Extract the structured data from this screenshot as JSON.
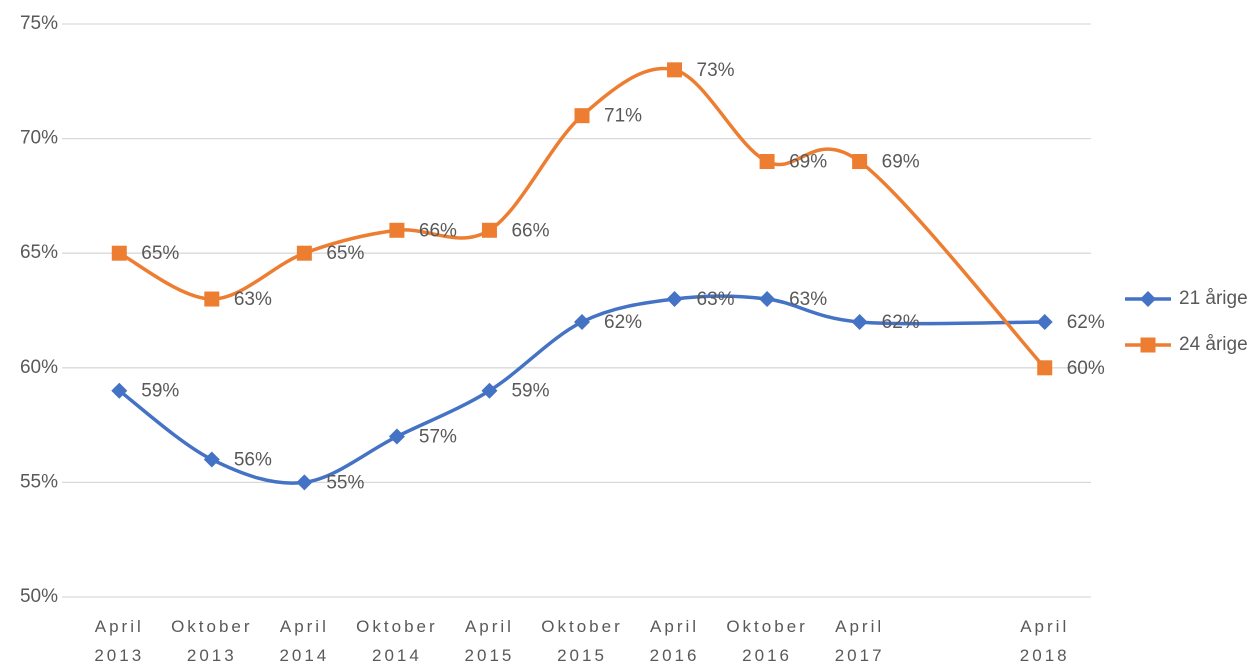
{
  "chart_data": {
    "type": "line",
    "categories": [
      "April 2013",
      "Oktober 2013",
      "April 2014",
      "Oktober 2014",
      "April 2015",
      "Oktober 2015",
      "April 2016",
      "Oktober 2016",
      "April 2017",
      null,
      "April 2018"
    ],
    "series": [
      {
        "name": "21 årige",
        "color": "#4472c4",
        "marker": "diamond",
        "values": [
          59,
          56,
          55,
          57,
          59,
          62,
          63,
          63,
          62,
          null,
          62
        ],
        "value_labels": [
          "59%",
          "56%",
          "55%",
          "57%",
          "59%",
          "62%",
          "63%",
          "63%",
          "62%",
          null,
          "62%"
        ]
      },
      {
        "name": "24 årige",
        "color": "#ed7d31",
        "marker": "square",
        "values": [
          65,
          63,
          65,
          66,
          66,
          71,
          73,
          69,
          69,
          null,
          60
        ],
        "value_labels": [
          "65%",
          "63%",
          "65%",
          "66%",
          "66%",
          "71%",
          "73%",
          "69%",
          "69%",
          null,
          "60%"
        ]
      }
    ],
    "ylim": [
      50,
      75
    ],
    "yticks": [
      {
        "value": 50,
        "label": "50%"
      },
      {
        "value": 55,
        "label": "55%"
      },
      {
        "value": 60,
        "label": "60%"
      },
      {
        "value": 65,
        "label": "65%"
      },
      {
        "value": 70,
        "label": "70%"
      },
      {
        "value": 75,
        "label": "75%"
      }
    ],
    "grid": true,
    "smooth": true,
    "connect_gaps": true,
    "legend": "right"
  }
}
